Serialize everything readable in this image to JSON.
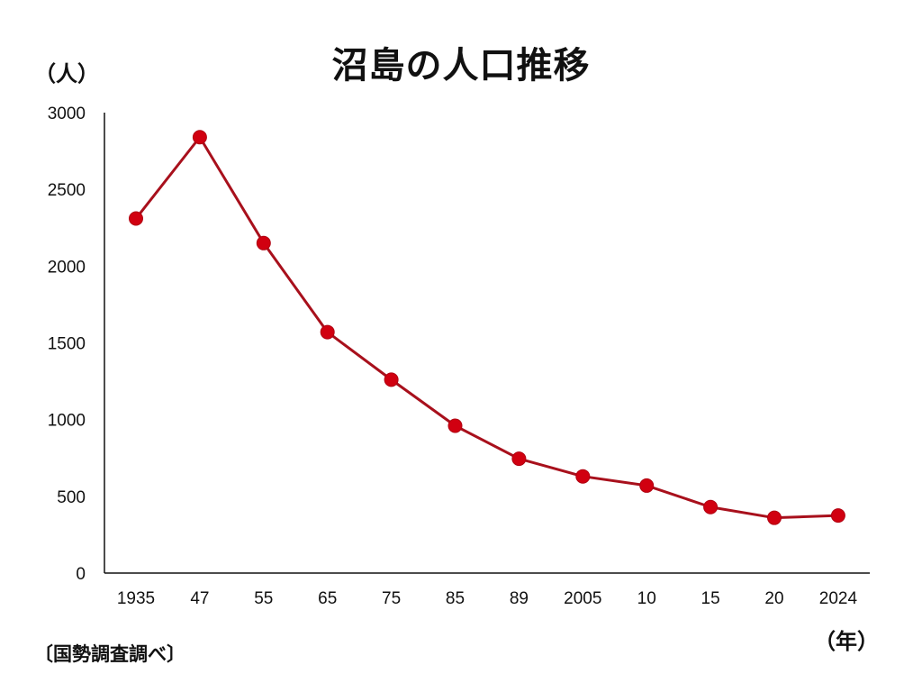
{
  "title": "沼島の人口推移",
  "y_unit_label": "（人）",
  "x_unit_label": "（年）",
  "source_note": "〔国勢調査調べ〕",
  "colors": {
    "line": "#a8101c",
    "marker": "#d10010",
    "axis": "#111111"
  },
  "chart_data": {
    "type": "line",
    "title": "沼島の人口推移",
    "xlabel": "（年）",
    "ylabel": "（人）",
    "ylim": [
      0,
      3000
    ],
    "yticks": [
      0,
      500,
      1000,
      1500,
      2000,
      2500,
      3000
    ],
    "grid": false,
    "legend": null,
    "categories": [
      "1935",
      "47",
      "55",
      "65",
      "75",
      "85",
      "89",
      "2005",
      "10",
      "15",
      "20",
      "2024"
    ],
    "series": [
      {
        "name": "人口",
        "values": [
          2310,
          2840,
          2150,
          1570,
          1260,
          960,
          745,
          630,
          570,
          430,
          360,
          375
        ]
      }
    ],
    "source": "〔国勢調査調べ〕"
  }
}
